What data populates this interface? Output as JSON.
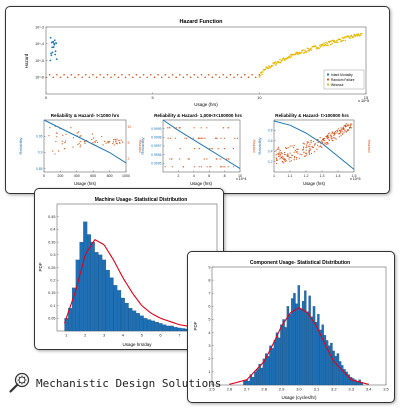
{
  "brand": {
    "name": "Mechanistic Design Solutions"
  },
  "colors": {
    "blue": "#1f77b4",
    "orange": "#d95319",
    "gold": "#e6b800",
    "red": "#e2001a",
    "histBlue": "#1f6fb5"
  },
  "chart_data": [
    {
      "id": "hazard",
      "type": "scatter",
      "title": "Hazard Function",
      "xlabel": "Usage (hrs)",
      "ylabel": "Hazard",
      "xlim": [
        0,
        15
      ],
      "x_exponent": "x 10^5",
      "yscale": "log",
      "ylim": [
        1e-07,
        0.001
      ],
      "xticks": [
        0,
        5,
        10,
        15
      ],
      "yticks": [
        "10^-3",
        "10^-4",
        "10^-5",
        "10^-6"
      ],
      "legend": {
        "placement": "right",
        "entries": [
          "Infant Mortality",
          "Random Failure",
          "Wearout"
        ]
      },
      "series": [
        {
          "name": "Infant Mortality",
          "x_range": [
            0.2,
            0.5
          ],
          "y_range": [
            1e-05,
            0.0003
          ],
          "count": 18
        },
        {
          "name": "Random Failure",
          "x_range": [
            0,
            10
          ],
          "y_values": [
            1e-06,
            1.4e-06
          ],
          "count": 60
        },
        {
          "name": "Wearout",
          "x_range": [
            10,
            14.8
          ],
          "y_range": [
            1e-06,
            0.0004
          ],
          "count": 150
        }
      ]
    },
    {
      "id": "rel-1",
      "type": "scatter",
      "title": "Reliability & Hazard- t<1000 hrs",
      "xlabel": "Usage (hrs)",
      "ylabel_left": "Reliability",
      "ylabel_right": "Hazard",
      "xlim": [
        0,
        1000
      ],
      "xticks": [
        0,
        200,
        400,
        600,
        800,
        1000
      ],
      "yticks_left": [
        0.95,
        0.9,
        0.85
      ],
      "ylim_left": [
        0.84,
        1.0
      ],
      "yticks_right": [
        10,
        5,
        2
      ],
      "reliability_curve": {
        "x": [
          0,
          200,
          400,
          600,
          800,
          1000
        ],
        "y": [
          1.0,
          0.975,
          0.95,
          0.925,
          0.9,
          0.868
        ]
      }
    },
    {
      "id": "rel-2",
      "type": "scatter",
      "title": "Reliability & Hazard- 1,000<t<100000 hrs",
      "xlabel": "Usage (hrs)",
      "ylabel_left": "Reliability",
      "ylabel_right": "Hazard",
      "xlim": [
        0,
        10
      ],
      "x_exponent": "x 10^4",
      "xticks": [
        2,
        4,
        6,
        8,
        10
      ],
      "yticks_left": [
        0.9999,
        0.9998,
        0.9997,
        0.9996,
        0.9995
      ],
      "ylim_left": [
        0.9994,
        1.0
      ],
      "reliability_curve": {
        "x": [
          0,
          2,
          4,
          6,
          8,
          10
        ],
        "y": [
          1.0,
          0.99988,
          0.99977,
          0.99966,
          0.99955,
          0.99944
        ]
      }
    },
    {
      "id": "rel-3",
      "type": "scatter",
      "title": "Reliability & Hazard- t>100000 hrs",
      "xlabel": "Usage (hrs)",
      "ylabel_left": "Reliability",
      "ylabel_right": "Hazard",
      "xlim": [
        1,
        1.5
      ],
      "x_exponent": "x 10^5",
      "xticks": [
        1,
        1.1,
        1.2,
        1.3,
        1.4,
        1.5
      ],
      "yticks_left": [
        0.8,
        0.6,
        0.4,
        0.2
      ],
      "ylim_left": [
        0,
        1.0
      ],
      "reliability_curve": {
        "x": [
          1.0,
          1.1,
          1.2,
          1.3,
          1.4,
          1.5
        ],
        "y": [
          0.98,
          0.9,
          0.75,
          0.55,
          0.3,
          0.05
        ]
      }
    },
    {
      "id": "machine",
      "type": "bar",
      "title": "Machine Usage- Statistical Distribution",
      "xlabel": "Usage hrs/day",
      "ylabel": "PDF",
      "xlim": [
        0.5,
        9
      ],
      "ylim": [
        0,
        0.5
      ],
      "xticks": [
        1,
        2,
        3,
        4,
        5,
        6,
        7,
        8,
        9
      ],
      "yticks": [
        0.05,
        0.1,
        0.15,
        0.2,
        0.25,
        0.3,
        0.35,
        0.4,
        0.45
      ],
      "bin_width": 0.2,
      "bins_start": 0.9,
      "values": [
        0.05,
        0.09,
        0.17,
        0.28,
        0.35,
        0.43,
        0.38,
        0.35,
        0.31,
        0.3,
        0.28,
        0.24,
        0.21,
        0.18,
        0.16,
        0.13,
        0.11,
        0.09,
        0.08,
        0.07,
        0.06,
        0.05,
        0.045,
        0.04,
        0.035,
        0.03,
        0.025,
        0.02,
        0.02,
        0.015,
        0.012,
        0.01,
        0.008,
        0.006,
        0.005,
        0.004
      ],
      "fit_curve": {
        "x": [
          0.9,
          1.5,
          2.0,
          2.5,
          3.0,
          3.5,
          4.0,
          4.5,
          5.0,
          5.5,
          6.0,
          7.0,
          8.0,
          9.0
        ],
        "y": [
          0.03,
          0.16,
          0.3,
          0.36,
          0.34,
          0.28,
          0.21,
          0.15,
          0.1,
          0.07,
          0.05,
          0.025,
          0.012,
          0.005
        ]
      }
    },
    {
      "id": "component",
      "type": "bar",
      "title": "Component Usage- Statistical Distribution",
      "xlabel": "Usage (cycles/hr)",
      "ylabel": "PDF",
      "xlim": [
        2.5,
        3.5
      ],
      "ylim": [
        0,
        9
      ],
      "xticks": [
        2.5,
        2.6,
        2.7,
        2.8,
        2.9,
        3,
        3.1,
        3.2,
        3.3,
        3.4,
        3.5
      ],
      "yticks": [
        1,
        2,
        3,
        4,
        5,
        6,
        7,
        8,
        9
      ],
      "bin_width": 0.0125,
      "bins_start": 2.68,
      "values": [
        0.3,
        0.4,
        0.3,
        0.8,
        0.6,
        1.0,
        1.2,
        1.6,
        1.3,
        2.0,
        2.4,
        2.2,
        3.0,
        2.8,
        3.4,
        4.0,
        3.6,
        4.6,
        5.0,
        4.4,
        6.0,
        5.4,
        6.6,
        7.0,
        6.2,
        7.6,
        5.8,
        6.4,
        7.2,
        5.6,
        6.8,
        5.2,
        6.0,
        4.8,
        5.4,
        4.2,
        4.6,
        3.8,
        3.4,
        3.0,
        3.2,
        2.6,
        2.2,
        2.4,
        1.8,
        1.5,
        1.2,
        1.0,
        0.8,
        0.6,
        0.5,
        0.4,
        0.3,
        0.4,
        0.2
      ],
      "fit_curve": {
        "x": [
          2.6,
          2.7,
          2.8,
          2.85,
          2.9,
          2.95,
          3.0,
          3.05,
          3.1,
          3.15,
          3.2,
          3.3,
          3.4
        ],
        "y": [
          0.05,
          0.4,
          1.8,
          3.1,
          4.5,
          5.5,
          5.9,
          5.5,
          4.5,
          3.1,
          1.8,
          0.4,
          0.05
        ]
      }
    }
  ]
}
